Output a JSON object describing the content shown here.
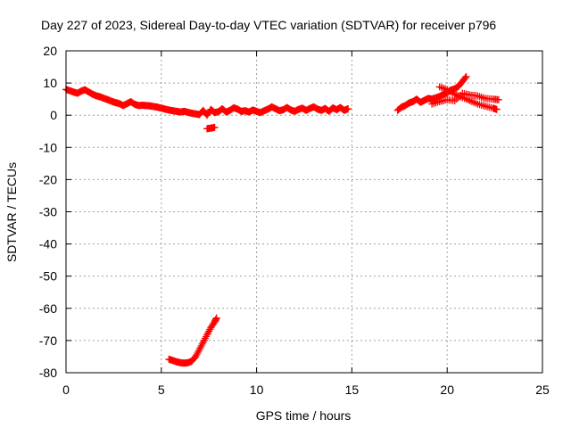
{
  "chart_data": {
    "type": "scatter",
    "title": "Day 227 of 2023, Sidereal Day-to-day VTEC variation (SDTVAR) for receiver p796",
    "xlabel": "GPS time / hours",
    "ylabel": "SDTVAR / TECUs",
    "xlim": [
      0,
      25
    ],
    "ylim": [
      -80,
      20
    ],
    "xticks": [
      "0",
      "5",
      "10",
      "15",
      "20",
      "25"
    ],
    "yticks": [
      "20",
      "10",
      "0",
      "-10",
      "-20",
      "-30",
      "-40",
      "-50",
      "-60",
      "-70",
      "-80"
    ],
    "grid": true,
    "marker": "+",
    "color": "#ff0000",
    "series": [
      {
        "name": "main-band",
        "points": [
          [
            0.0,
            8.0
          ],
          [
            0.2,
            7.6
          ],
          [
            0.4,
            7.2
          ],
          [
            0.6,
            6.8
          ],
          [
            0.8,
            7.5
          ],
          [
            1.0,
            7.9
          ],
          [
            1.2,
            7.2
          ],
          [
            1.4,
            6.5
          ],
          [
            1.6,
            6.0
          ],
          [
            1.8,
            5.7
          ],
          [
            2.0,
            5.2
          ],
          [
            2.2,
            4.8
          ],
          [
            2.4,
            4.3
          ],
          [
            2.6,
            3.9
          ],
          [
            2.8,
            3.6
          ],
          [
            3.0,
            3.0
          ],
          [
            3.2,
            3.6
          ],
          [
            3.4,
            4.2
          ],
          [
            3.6,
            3.4
          ],
          [
            3.8,
            3.0
          ],
          [
            4.0,
            3.1
          ],
          [
            4.2,
            3.0
          ],
          [
            4.4,
            2.9
          ],
          [
            4.6,
            2.7
          ],
          [
            4.8,
            2.5
          ],
          [
            5.0,
            2.2
          ],
          [
            5.2,
            1.9
          ],
          [
            5.4,
            1.6
          ],
          [
            5.6,
            1.4
          ],
          [
            5.8,
            1.2
          ],
          [
            6.0,
            1.0
          ],
          [
            6.2,
            1.2
          ],
          [
            6.4,
            0.9
          ],
          [
            6.6,
            0.6
          ],
          [
            6.8,
            0.4
          ],
          [
            7.0,
            0.2
          ],
          [
            7.2,
            1.5
          ],
          [
            7.4,
            0.0
          ],
          [
            7.6,
            1.8
          ],
          [
            7.8,
            0.8
          ],
          [
            8.0,
            1.1
          ],
          [
            8.2,
            2.0
          ],
          [
            8.4,
            1.0
          ],
          [
            8.6,
            1.5
          ],
          [
            8.8,
            2.3
          ],
          [
            9.0,
            1.9
          ],
          [
            9.2,
            1.2
          ],
          [
            9.4,
            1.4
          ],
          [
            9.6,
            1.0
          ],
          [
            9.8,
            1.6
          ],
          [
            10.0,
            1.2
          ],
          [
            10.2,
            0.8
          ],
          [
            10.4,
            1.4
          ],
          [
            10.6,
            1.9
          ],
          [
            10.8,
            2.6
          ],
          [
            11.0,
            2.0
          ],
          [
            11.2,
            1.4
          ],
          [
            11.4,
            1.7
          ],
          [
            11.6,
            2.4
          ],
          [
            11.8,
            1.6
          ],
          [
            12.0,
            1.2
          ],
          [
            12.2,
            1.8
          ],
          [
            12.4,
            2.2
          ],
          [
            12.6,
            1.5
          ],
          [
            12.8,
            2.1
          ],
          [
            13.0,
            2.6
          ],
          [
            13.2,
            1.9
          ],
          [
            13.4,
            1.5
          ],
          [
            13.6,
            2.1
          ],
          [
            13.8,
            1.2
          ],
          [
            14.0,
            2.3
          ],
          [
            14.2,
            1.7
          ],
          [
            14.4,
            2.4
          ],
          [
            14.6,
            1.5
          ],
          [
            14.8,
            2.0
          ]
        ]
      },
      {
        "name": "small-cluster",
        "points": [
          [
            7.4,
            -4.2
          ],
          [
            7.6,
            -4.0
          ],
          [
            7.8,
            -3.8
          ]
        ]
      },
      {
        "name": "late-band",
        "points": [
          [
            17.4,
            1.5
          ],
          [
            17.6,
            2.5
          ],
          [
            17.8,
            3.0
          ],
          [
            18.0,
            3.8
          ],
          [
            18.2,
            4.2
          ],
          [
            18.4,
            5.0
          ],
          [
            18.6,
            4.0
          ],
          [
            18.8,
            4.6
          ],
          [
            19.0,
            5.2
          ],
          [
            19.2,
            5.0
          ],
          [
            19.4,
            5.4
          ],
          [
            19.6,
            5.8
          ],
          [
            19.8,
            6.5
          ],
          [
            20.0,
            7.0
          ],
          [
            20.2,
            7.8
          ],
          [
            20.4,
            8.2
          ],
          [
            20.6,
            9.0
          ],
          [
            20.8,
            10.5
          ],
          [
            21.0,
            12.0
          ],
          [
            19.6,
            8.8
          ],
          [
            20.0,
            8.0
          ],
          [
            20.4,
            6.5
          ],
          [
            20.8,
            5.5
          ],
          [
            21.2,
            4.5
          ],
          [
            21.6,
            3.5
          ],
          [
            22.0,
            2.8
          ],
          [
            22.4,
            2.2
          ],
          [
            22.6,
            1.8
          ],
          [
            19.2,
            3.5
          ],
          [
            19.6,
            4.2
          ],
          [
            20.0,
            4.8
          ],
          [
            20.4,
            4.5
          ],
          [
            20.8,
            6.8
          ],
          [
            21.2,
            6.3
          ],
          [
            21.6,
            6.0
          ],
          [
            22.0,
            5.2
          ],
          [
            22.4,
            5.0
          ],
          [
            22.7,
            4.8
          ]
        ]
      },
      {
        "name": "low-arc",
        "points": [
          [
            5.4,
            -75.8
          ],
          [
            5.6,
            -76.2
          ],
          [
            5.8,
            -76.6
          ],
          [
            6.0,
            -76.9
          ],
          [
            6.2,
            -77.0
          ],
          [
            6.4,
            -76.9
          ],
          [
            6.6,
            -76.4
          ],
          [
            6.8,
            -75.0
          ],
          [
            7.0,
            -72.8
          ],
          [
            7.2,
            -70.5
          ],
          [
            7.4,
            -68.2
          ],
          [
            7.6,
            -66.0
          ],
          [
            7.8,
            -64.2
          ],
          [
            7.9,
            -63.0
          ]
        ]
      }
    ]
  }
}
